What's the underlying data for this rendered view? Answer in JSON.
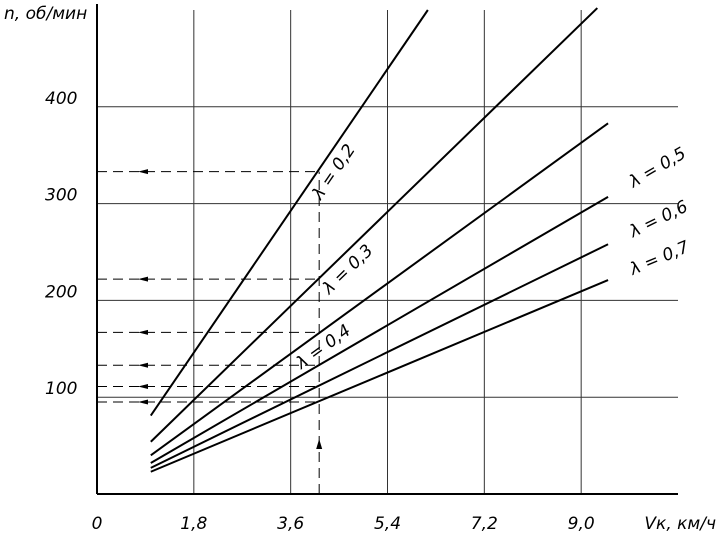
{
  "chart_data": {
    "type": "line",
    "x_label": "Vк, км/ч",
    "y_label": "n, об/мин",
    "xlim": [
      0,
      10.8
    ],
    "ylim": [
      0,
      500
    ],
    "xticks": [
      0,
      {
        "value": 1.8,
        "label": "1,8"
      },
      {
        "value": 3.6,
        "label": "3,6"
      },
      {
        "value": 5.4,
        "label": "5,4"
      },
      {
        "value": 7.2,
        "label": "7,2"
      },
      {
        "value": 9.0,
        "label": "9,0"
      }
    ],
    "yticks": [
      100,
      200,
      300,
      400
    ],
    "grid": true,
    "series": [
      {
        "name": "λ = 0,2",
        "color": "#000000",
        "x": [
          1,
          6.15
        ],
        "values": [
          81,
          500
        ]
      },
      {
        "name": "λ = 0,3",
        "color": "#000000",
        "x": [
          1,
          9.3
        ],
        "values": [
          54,
          502
        ]
      },
      {
        "name": "λ = 0,4",
        "color": "#000000",
        "x": [
          1,
          9.5
        ],
        "values": [
          40,
          383
        ]
      },
      {
        "name": "λ = 0,5",
        "color": "#000000",
        "x": [
          1,
          9.5
        ],
        "values": [
          32,
          307
        ]
      },
      {
        "name": "λ = 0,6",
        "color": "#000000",
        "x": [
          1,
          9.5
        ],
        "values": [
          27,
          258
        ]
      },
      {
        "name": "λ = 0,7",
        "color": "#000000",
        "x": [
          1,
          9.5
        ],
        "values": [
          23,
          221
        ]
      }
    ],
    "reading": {
      "x": 4.13,
      "values": [
        333,
        222,
        167,
        133,
        111,
        95
      ]
    }
  }
}
